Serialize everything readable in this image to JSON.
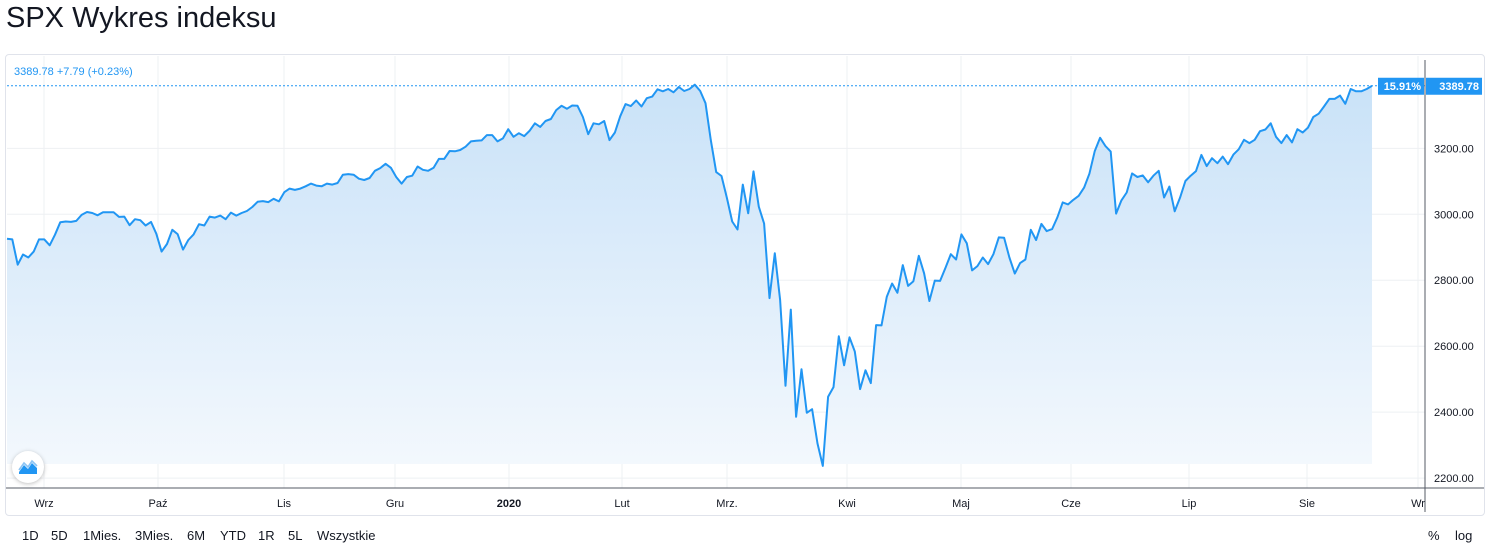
{
  "header": {
    "title": "SPX Wykres indeksu"
  },
  "quote": {
    "text": "3389.78 +7.79 (+0.23%)"
  },
  "price_tag": {
    "percent": "15.91%",
    "value": "3389.78"
  },
  "range_buttons": [
    "1D",
    "5D",
    "1Mies.",
    "3Mies.",
    "6M",
    "YTD",
    "1R",
    "5L",
    "Wszystkie"
  ],
  "scale_buttons": {
    "percent": "%",
    "log": "log"
  },
  "colors": {
    "line": "#2196f3",
    "fill_top": "#c9e2f8",
    "fill_bottom": "#f3f8fd",
    "grid": "#eef0f3",
    "tag_bg": "#2196f3"
  },
  "icons": {
    "logo": "tradingview-chart-icon"
  },
  "chart_data": {
    "type": "area",
    "x_tick_labels": [
      "Wrz",
      "Paź",
      "Lis",
      "Gru",
      "2020",
      "Lut",
      "Mrz.",
      "Kwi",
      "Maj",
      "Cze",
      "Lip",
      "Sie",
      "Wr"
    ],
    "y_tick_labels": [
      "3200.00",
      "3000.00",
      "2800.00",
      "2600.00",
      "2400.00",
      "2200.00"
    ],
    "ylim": [
      2170,
      3480
    ],
    "last_value": 3389.78,
    "series": [
      {
        "values": [
          2926,
          2924,
          2847,
          2878,
          2869,
          2887,
          2924,
          2924,
          2906,
          2938,
          2976,
          2978,
          2977,
          2980,
          2998,
          3007,
          3004,
          2997,
          3006,
          3006,
          3006,
          2992,
          2993,
          2967,
          2985,
          2982,
          2966,
          2977,
          2941,
          2887,
          2910,
          2953,
          2940,
          2893,
          2922,
          2939,
          2970,
          2966,
          2993,
          2990,
          2996,
          2985,
          3005,
          2996,
          3004,
          3010,
          3022,
          3038,
          3040,
          3037,
          3047,
          3039,
          3067,
          3078,
          3074,
          3078,
          3085,
          3093,
          3087,
          3085,
          3093,
          3090,
          3095,
          3120,
          3122,
          3120,
          3108,
          3104,
          3110,
          3132,
          3140,
          3153,
          3141,
          3113,
          3093,
          3113,
          3117,
          3145,
          3135,
          3132,
          3141,
          3168,
          3168,
          3192,
          3191,
          3195,
          3205,
          3221,
          3223,
          3224,
          3240,
          3240,
          3221,
          3230,
          3258,
          3235,
          3246,
          3237,
          3253,
          3276,
          3265,
          3283,
          3289,
          3316,
          3329,
          3320,
          3330,
          3329,
          3295,
          3243,
          3276,
          3273,
          3283,
          3225,
          3248,
          3297,
          3334,
          3328,
          3345,
          3327,
          3352,
          3357,
          3379,
          3373,
          3380,
          3370,
          3386,
          3374,
          3380,
          3393,
          3374,
          3337,
          3225,
          3128,
          3116,
          3051,
          2978,
          2954,
          3090,
          3003,
          3130,
          3023,
          2972,
          2746,
          2882,
          2741,
          2480,
          2711,
          2386,
          2530,
          2398,
          2409,
          2305,
          2237,
          2447,
          2476,
          2630,
          2542,
          2627,
          2584,
          2470,
          2527,
          2488,
          2664,
          2663,
          2750,
          2790,
          2762,
          2846,
          2783,
          2797,
          2874,
          2821,
          2737,
          2799,
          2798,
          2837,
          2879,
          2863,
          2939,
          2912,
          2830,
          2843,
          2869,
          2849,
          2879,
          2930,
          2929,
          2869,
          2820,
          2852,
          2863,
          2953,
          2922,
          2971,
          2949,
          2955,
          2991,
          3036,
          3030,
          3044,
          3056,
          3081,
          3123,
          3191,
          3232,
          3207,
          3190,
          3002,
          3042,
          3066,
          3124,
          3113,
          3118,
          3097,
          3117,
          3132,
          3051,
          3084,
          3009,
          3050,
          3101,
          3117,
          3131,
          3180,
          3146,
          3170,
          3155,
          3175,
          3152,
          3181,
          3197,
          3226,
          3216,
          3226,
          3252,
          3257,
          3276,
          3235,
          3216,
          3240,
          3218,
          3258,
          3248,
          3263,
          3295,
          3305,
          3327,
          3350,
          3350,
          3360,
          3335,
          3380,
          3373,
          3373,
          3380,
          3389.78
        ]
      }
    ]
  }
}
